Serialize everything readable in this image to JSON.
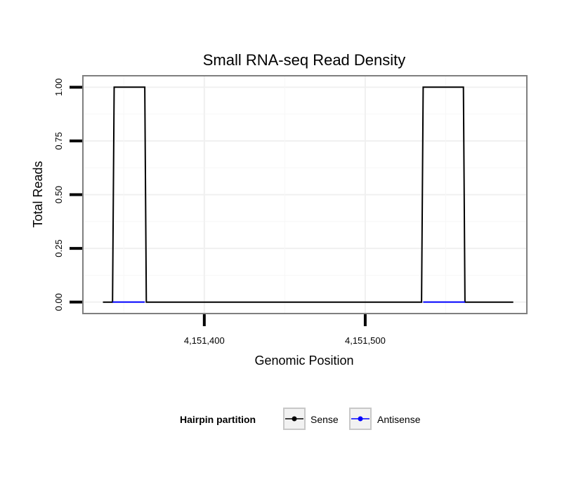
{
  "chart_data": {
    "type": "line",
    "title": "Small RNA-seq Read Density",
    "xlabel": "Genomic Position",
    "ylabel": "Total Reads",
    "xlim": [
      4151325,
      4151600
    ],
    "ylim": [
      -0.05,
      1.05
    ],
    "x_ticks": [
      4151400,
      4151500
    ],
    "x_tick_labels": [
      "4,151,400",
      "4,151,500"
    ],
    "y_ticks": [
      0,
      0.25,
      0.5,
      0.75,
      1
    ],
    "y_tick_labels": [
      "0.00",
      "0.25",
      "0.50",
      "0.75",
      "1.00"
    ],
    "grid": true,
    "legend_title": "Hairpin partition",
    "legend_position": "bottom",
    "series": [
      {
        "name": "Sense",
        "color": "#000000",
        "x": [
          4151337,
          4151343,
          4151344,
          4151363,
          4151364,
          4151535,
          4151536,
          4151561,
          4151562,
          4151592
        ],
        "y": [
          0,
          0,
          1,
          1,
          0,
          0,
          1,
          1,
          0,
          0
        ]
      },
      {
        "name": "Antisense",
        "color": "#0000ff",
        "x": [
          4151343,
          4151363,
          4151536,
          4151562
        ],
        "y": [
          0,
          0,
          0,
          0
        ],
        "segments": [
          [
            0,
            1
          ],
          [
            2,
            3
          ]
        ]
      }
    ]
  }
}
